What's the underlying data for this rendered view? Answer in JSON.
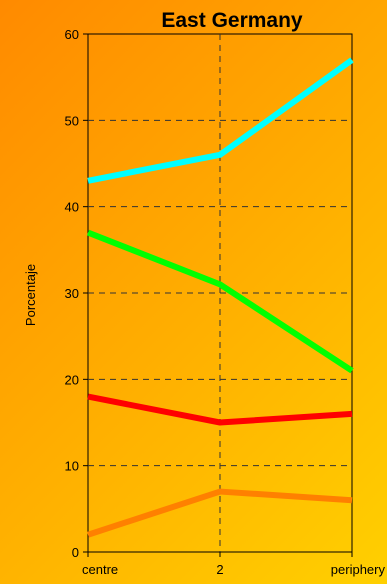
{
  "chart_data": {
    "type": "line",
    "title": "East  Germany",
    "xlabel": "",
    "ylabel": "Porcentaje",
    "categories": [
      "centre",
      "2",
      "periphery"
    ],
    "ylim": [
      0,
      60
    ],
    "yticks": [
      0,
      10,
      20,
      30,
      40,
      50,
      60
    ],
    "grid": true,
    "series": [
      {
        "color": "#00ffff",
        "values": [
          43,
          46,
          57
        ]
      },
      {
        "color": "#00ff00",
        "values": [
          37,
          31,
          21
        ]
      },
      {
        "color": "#ff0000",
        "values": [
          18,
          15,
          16
        ]
      },
      {
        "color": "#ff8000",
        "values": [
          2,
          7,
          6
        ]
      }
    ]
  }
}
